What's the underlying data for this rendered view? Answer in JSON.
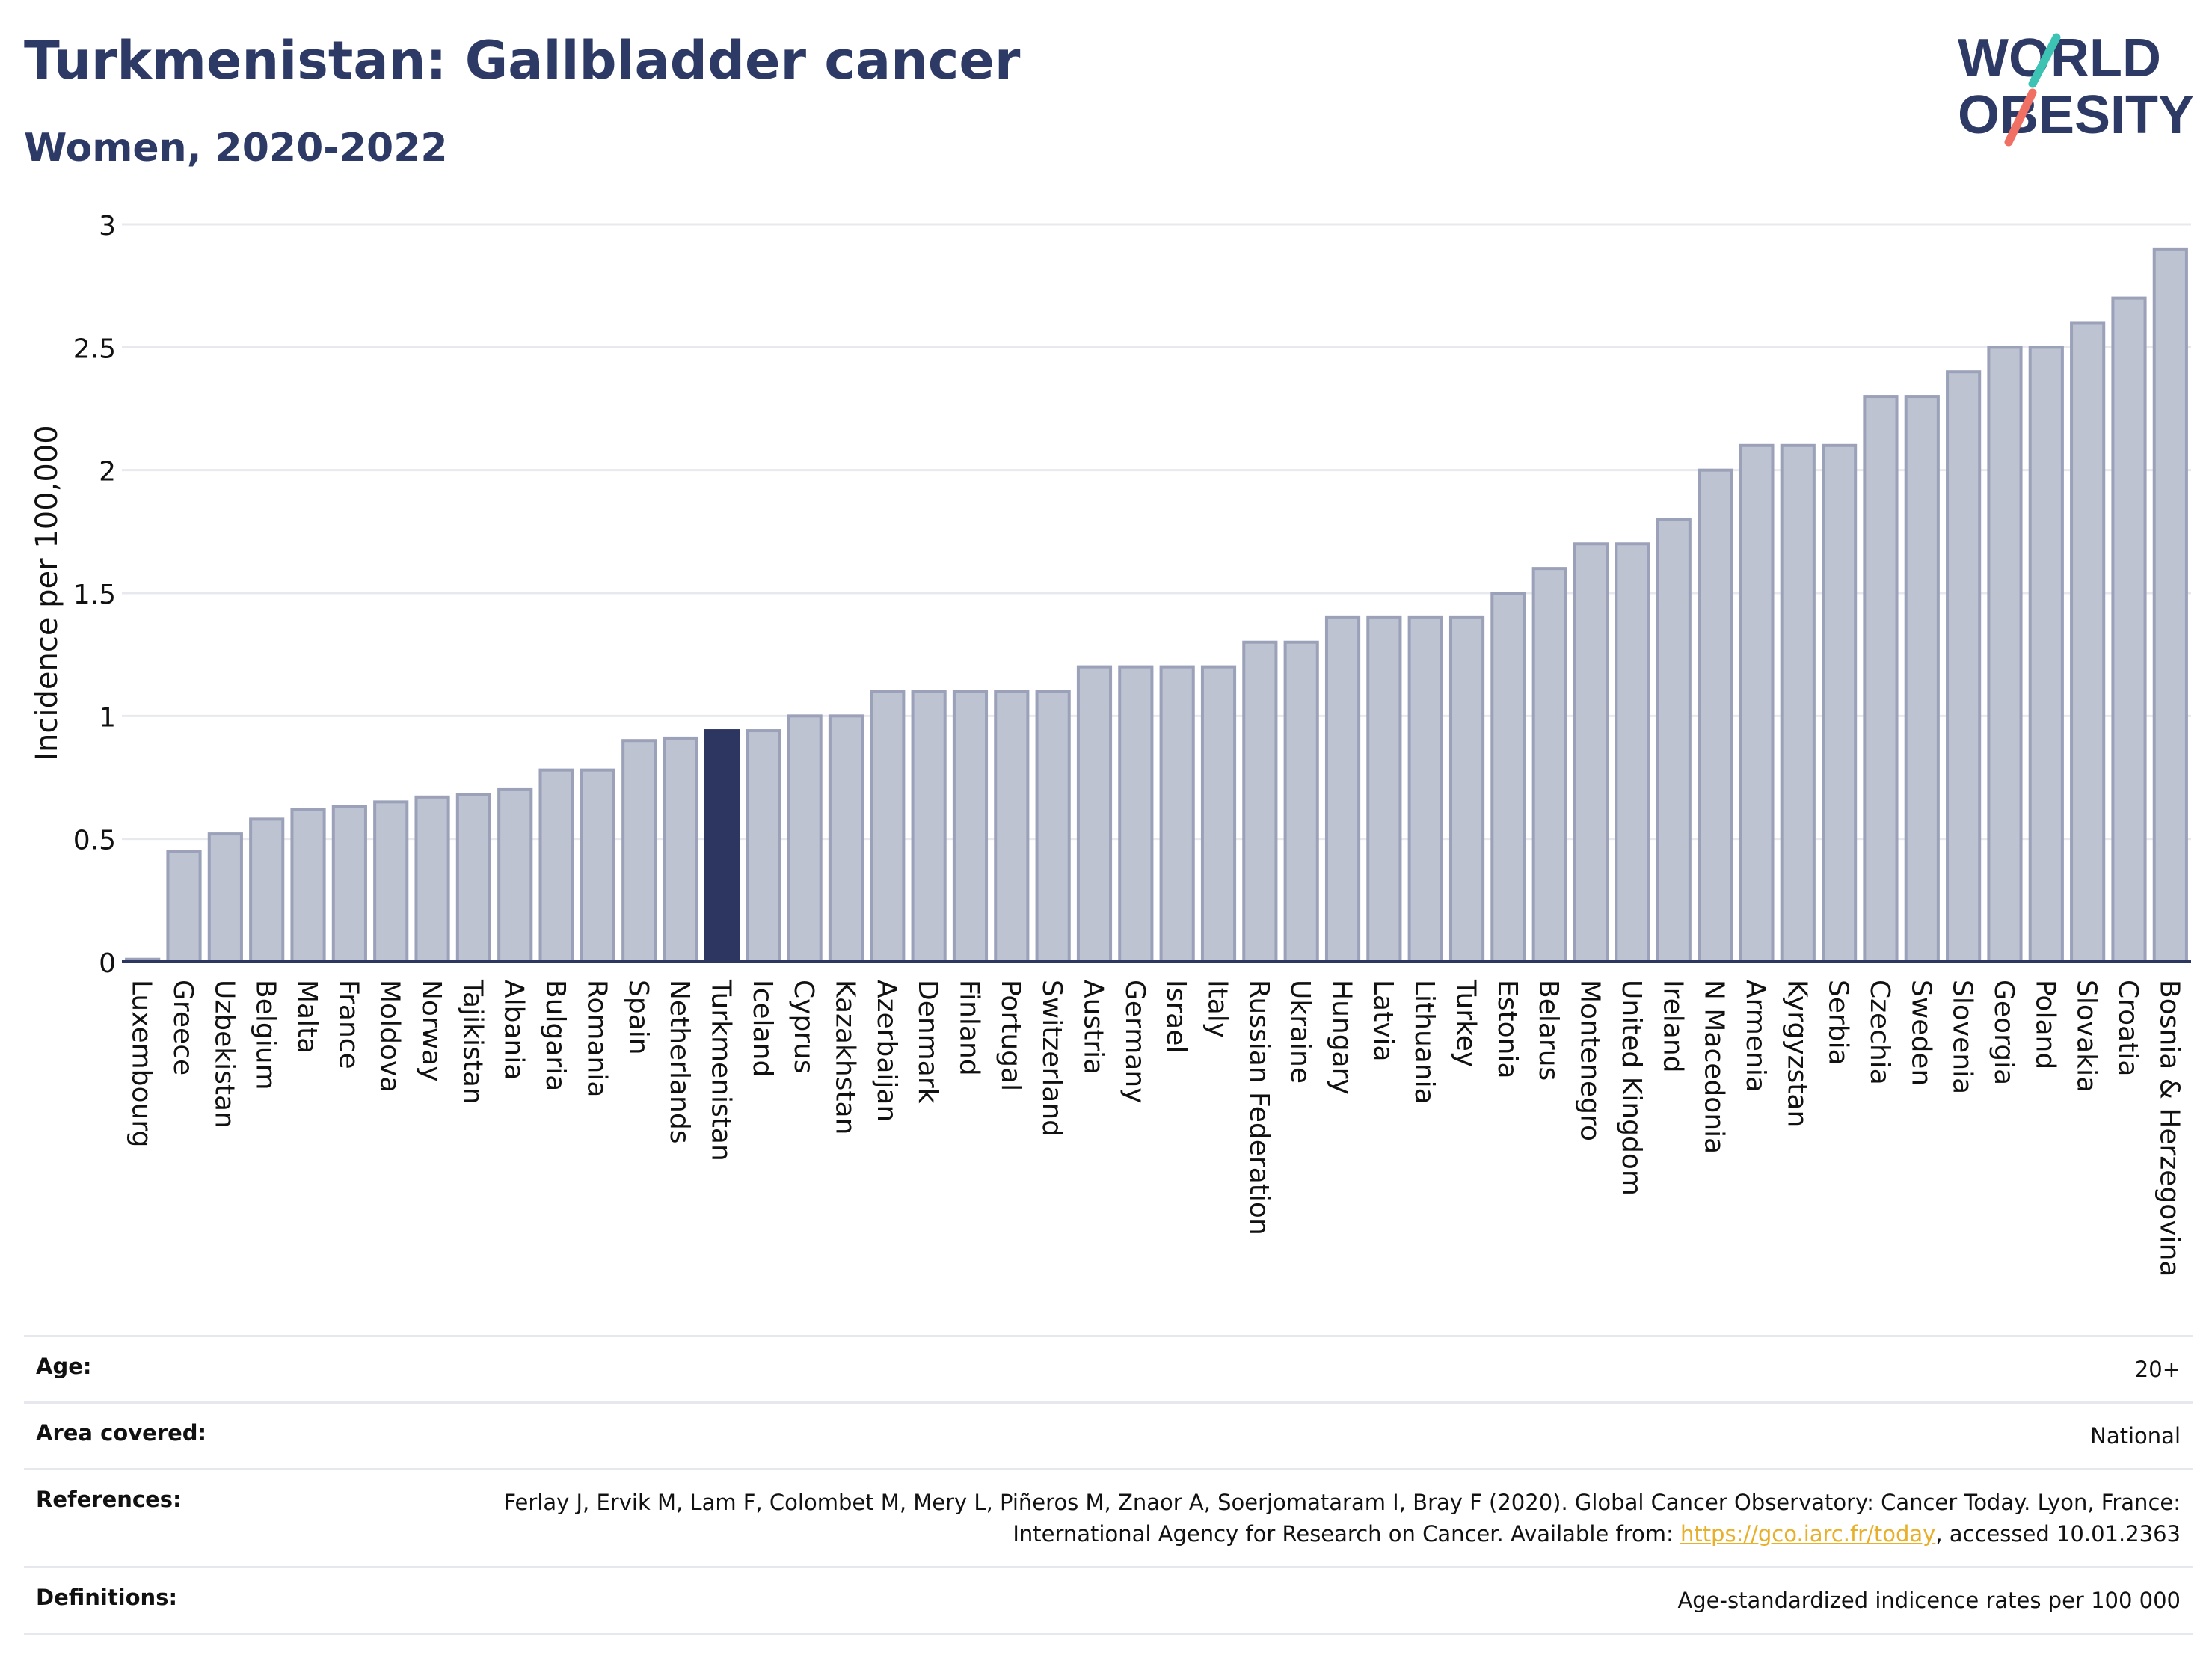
{
  "header": {
    "title": "Turkmenistan: Gallbladder cancer",
    "subtitle": "Women, 2020-2022"
  },
  "logo": {
    "line1": "WORLD",
    "line2": "OBESITY",
    "text_color": "#2d3a66",
    "accent_teal": "#3cc3b4",
    "accent_coral": "#f07064"
  },
  "colors": {
    "highlight_bar": "#2d3561",
    "bar_fill": "#bec3d2",
    "bar_stroke": "#9aa1b8",
    "grid": "#e8e9ee",
    "axis": "#2d3561"
  },
  "chart_data": {
    "type": "bar",
    "ylabel": "Incidence per 100,000",
    "xlabel": "",
    "ylim": [
      0,
      3
    ],
    "yticks": [
      "0",
      "0.5",
      "1",
      "1.5",
      "2",
      "2.5",
      "3"
    ],
    "ytick_values": [
      0,
      0.5,
      1,
      1.5,
      2,
      2.5,
      3
    ],
    "grid": true,
    "highlight": "Turkmenistan",
    "categories": [
      "Luxembourg",
      "Greece",
      "Uzbekistan",
      "Belgium",
      "Malta",
      "France",
      "Moldova",
      "Norway",
      "Tajikistan",
      "Albania",
      "Bulgaria",
      "Romania",
      "Spain",
      "Netherlands",
      "Turkmenistan",
      "Iceland",
      "Cyprus",
      "Kazakhstan",
      "Azerbaijan",
      "Denmark",
      "Finland",
      "Portugal",
      "Switzerland",
      "Austria",
      "Germany",
      "Israel",
      "Italy",
      "Russian Federation",
      "Ukraine",
      "Hungary",
      "Latvia",
      "Lithuania",
      "Turkey",
      "Estonia",
      "Belarus",
      "Montenegro",
      "United Kingdom",
      "Ireland",
      "N Macedonia",
      "Armenia",
      "Kyrgyzstan",
      "Serbia",
      "Czechia",
      "Sweden",
      "Slovenia",
      "Georgia",
      "Poland",
      "Slovakia",
      "Croatia",
      "Bosnia & Herzegovina"
    ],
    "values": [
      0.01,
      0.45,
      0.52,
      0.58,
      0.62,
      0.63,
      0.65,
      0.67,
      0.68,
      0.7,
      0.78,
      0.78,
      0.9,
      0.91,
      0.94,
      0.94,
      1.0,
      1.0,
      1.1,
      1.1,
      1.1,
      1.1,
      1.1,
      1.2,
      1.2,
      1.2,
      1.2,
      1.3,
      1.3,
      1.4,
      1.4,
      1.4,
      1.4,
      1.5,
      1.6,
      1.7,
      1.7,
      1.8,
      2.0,
      2.1,
      2.1,
      2.1,
      2.3,
      2.3,
      2.4,
      2.5,
      2.5,
      2.6,
      2.7,
      2.9
    ]
  },
  "info": {
    "age_label": "Age:",
    "age_value": "20+",
    "area_label": "Area covered:",
    "area_value": "National",
    "references_label": "References:",
    "references_text": "Ferlay J, Ervik M, Lam F, Colombet M, Mery L, Piñeros M, Znaor A, Soerjomataram I, Bray F (2020). Global Cancer Observatory: Cancer Today. Lyon, France: International Agency for Research on Cancer. Available from: ",
    "references_link": "https://gco.iarc.fr/today",
    "references_suffix": ", accessed 10.01.2363",
    "definitions_label": "Definitions:",
    "definitions_value": "Age-standardized indicence rates per 100 000"
  }
}
